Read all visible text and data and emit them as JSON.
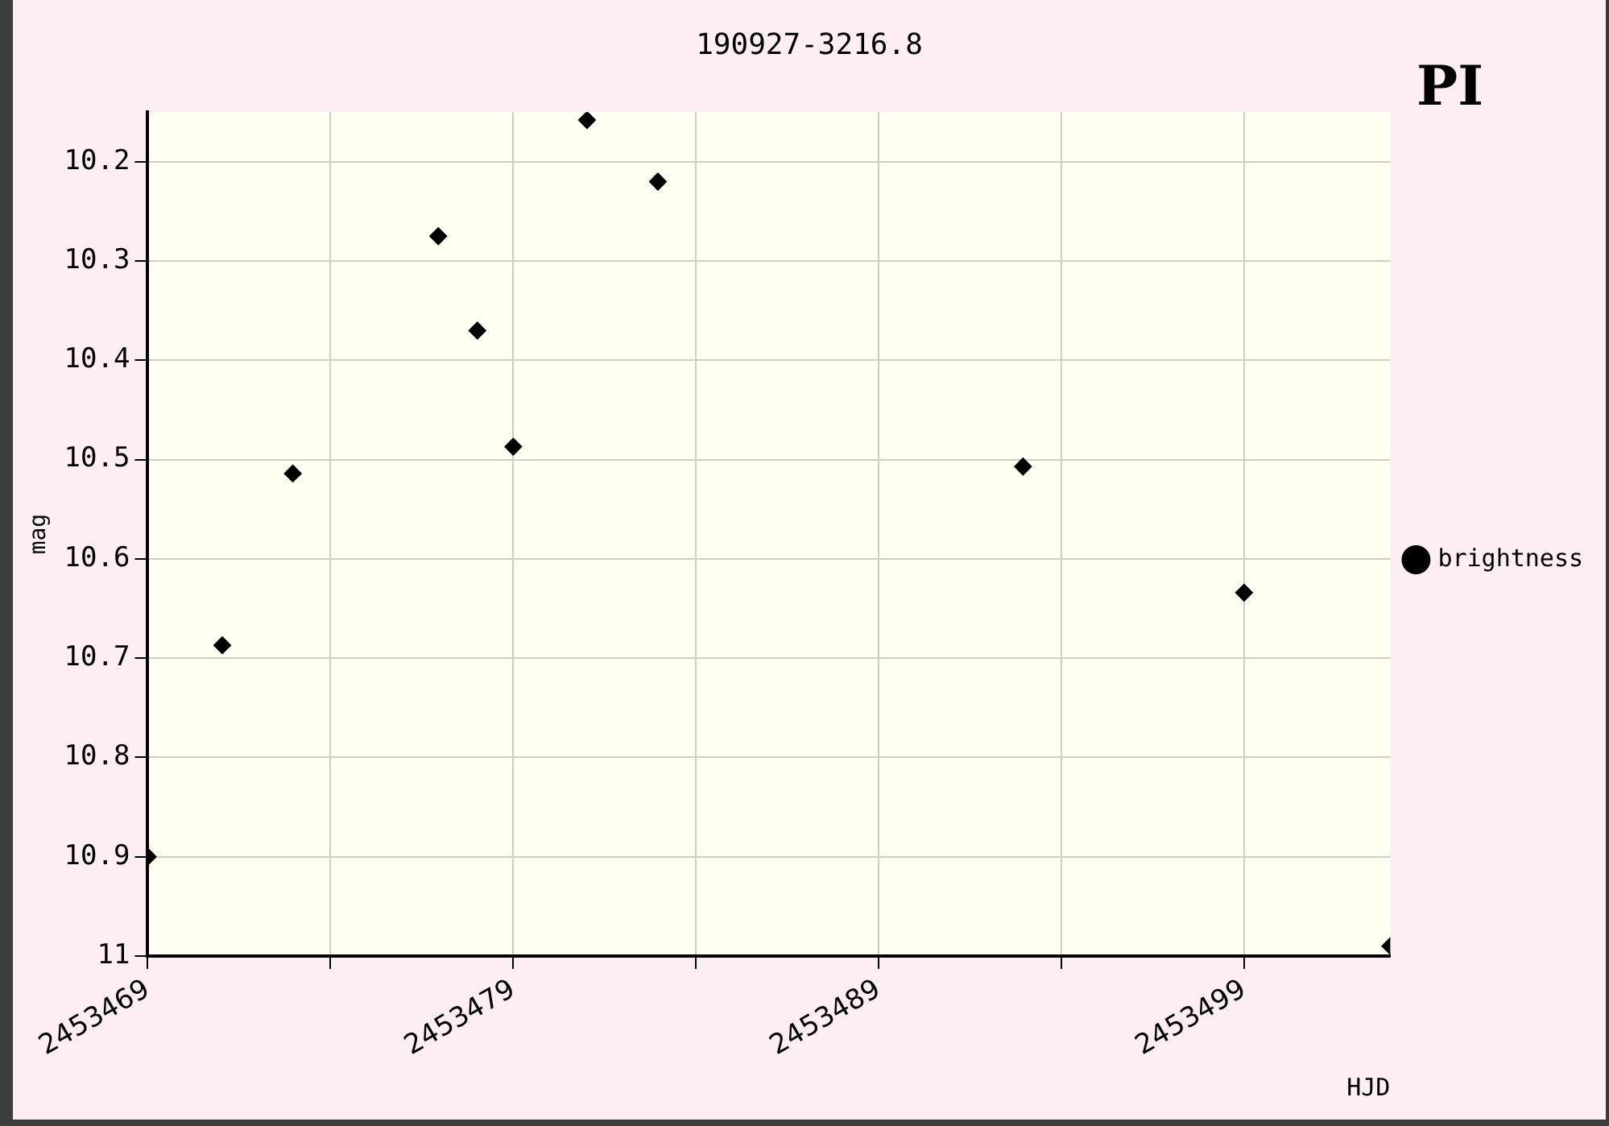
{
  "chart_data": {
    "type": "scatter",
    "title": "190927-3216.8",
    "xlabel": "HJD",
    "ylabel": "mag",
    "annotations": [
      "PI"
    ],
    "x": [
      2453469,
      2453471.04,
      2453472.97,
      2453476.95,
      2453478.02,
      2453479,
      2453481.02,
      2453482.96,
      2453492.95,
      2453499,
      2453503
    ],
    "series": [
      {
        "name": "brightness",
        "color": "#000000",
        "values": [
          10.9,
          10.687,
          10.514,
          10.275,
          10.37,
          10.487,
          10.158,
          10.22,
          10.507,
          10.634,
          10.99
        ]
      }
    ],
    "xlim": [
      2453469,
      2453503
    ],
    "xticks": [
      2453469,
      {
        "value": 2453474,
        "label": null
      },
      2453479,
      {
        "value": 2453484,
        "label": null
      },
      2453489,
      {
        "value": 2453494,
        "label": null
      },
      2453499
    ],
    "ylim": [
      11,
      10.15
    ],
    "yticks": [
      10.2,
      10.3,
      10.4,
      10.5,
      10.6,
      10.7,
      10.8,
      10.9,
      11
    ],
    "grid": true,
    "legend": "right",
    "marker": "diamond"
  }
}
